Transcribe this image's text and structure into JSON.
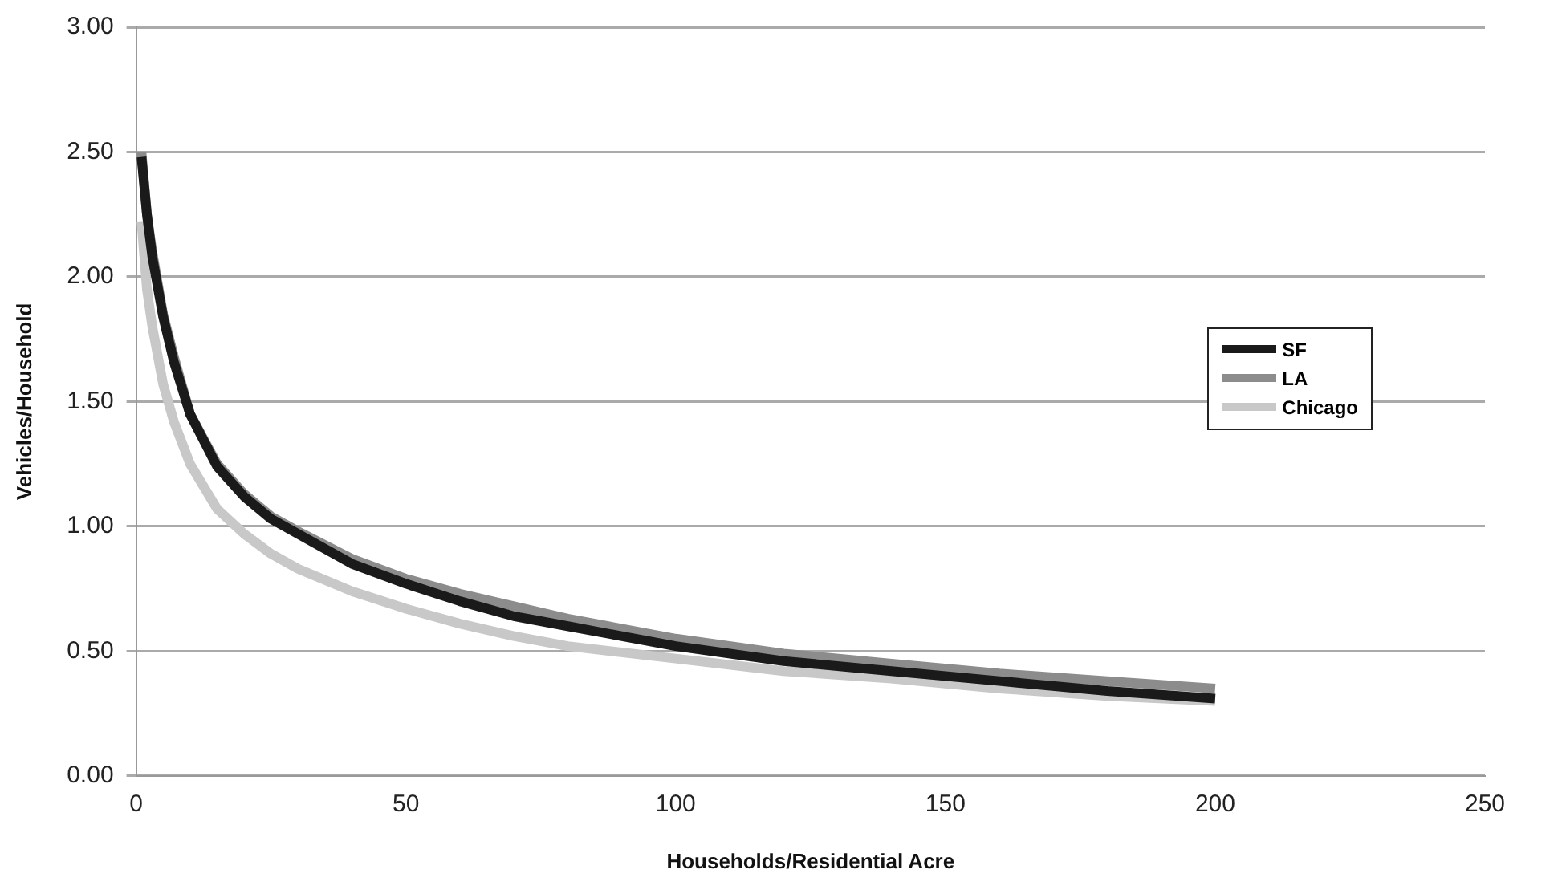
{
  "chart_data": {
    "type": "line",
    "xlabel": "Households/Residential Acre",
    "ylabel": "Vehicles/Household",
    "x": [
      1,
      2,
      3,
      5,
      7,
      10,
      15,
      20,
      25,
      30,
      40,
      50,
      60,
      70,
      80,
      100,
      120,
      140,
      160,
      180,
      200
    ],
    "series": [
      {
        "name": "SF",
        "color": "#1a1a1a",
        "values": [
          2.48,
          2.25,
          2.08,
          1.84,
          1.66,
          1.45,
          1.24,
          1.12,
          1.03,
          0.97,
          0.85,
          0.77,
          0.7,
          0.64,
          0.6,
          0.52,
          0.46,
          0.42,
          0.38,
          0.34,
          0.31
        ]
      },
      {
        "name": "LA",
        "color": "#8c8c8c",
        "values": [
          2.5,
          2.25,
          2.1,
          1.85,
          1.68,
          1.45,
          1.25,
          1.13,
          1.04,
          0.98,
          0.87,
          0.79,
          0.73,
          0.68,
          0.63,
          0.55,
          0.49,
          0.45,
          0.41,
          0.38,
          0.35
        ]
      },
      {
        "name": "Chicago",
        "color": "#c8c8c8",
        "values": [
          2.22,
          1.95,
          1.8,
          1.57,
          1.42,
          1.25,
          1.07,
          0.97,
          0.89,
          0.83,
          0.74,
          0.67,
          0.61,
          0.56,
          0.52,
          0.47,
          0.42,
          0.39,
          0.35,
          0.32,
          0.3
        ]
      }
    ],
    "xlim": [
      0,
      250
    ],
    "xticks": [
      0,
      50,
      100,
      150,
      200,
      250
    ],
    "ylim": [
      0,
      3
    ],
    "yticks": [
      {
        "value": 0,
        "label": "0.00"
      },
      {
        "value": 0.5,
        "label": "0.50"
      },
      {
        "value": 1,
        "label": "1.00"
      },
      {
        "value": 1.5,
        "label": "1.50"
      },
      {
        "value": 2,
        "label": "2.00"
      },
      {
        "value": 2.5,
        "label": "2.50"
      },
      {
        "value": 3,
        "label": "3.00"
      }
    ],
    "grid": "y",
    "legend": "right",
    "marker": "none",
    "line_style": "solid"
  }
}
